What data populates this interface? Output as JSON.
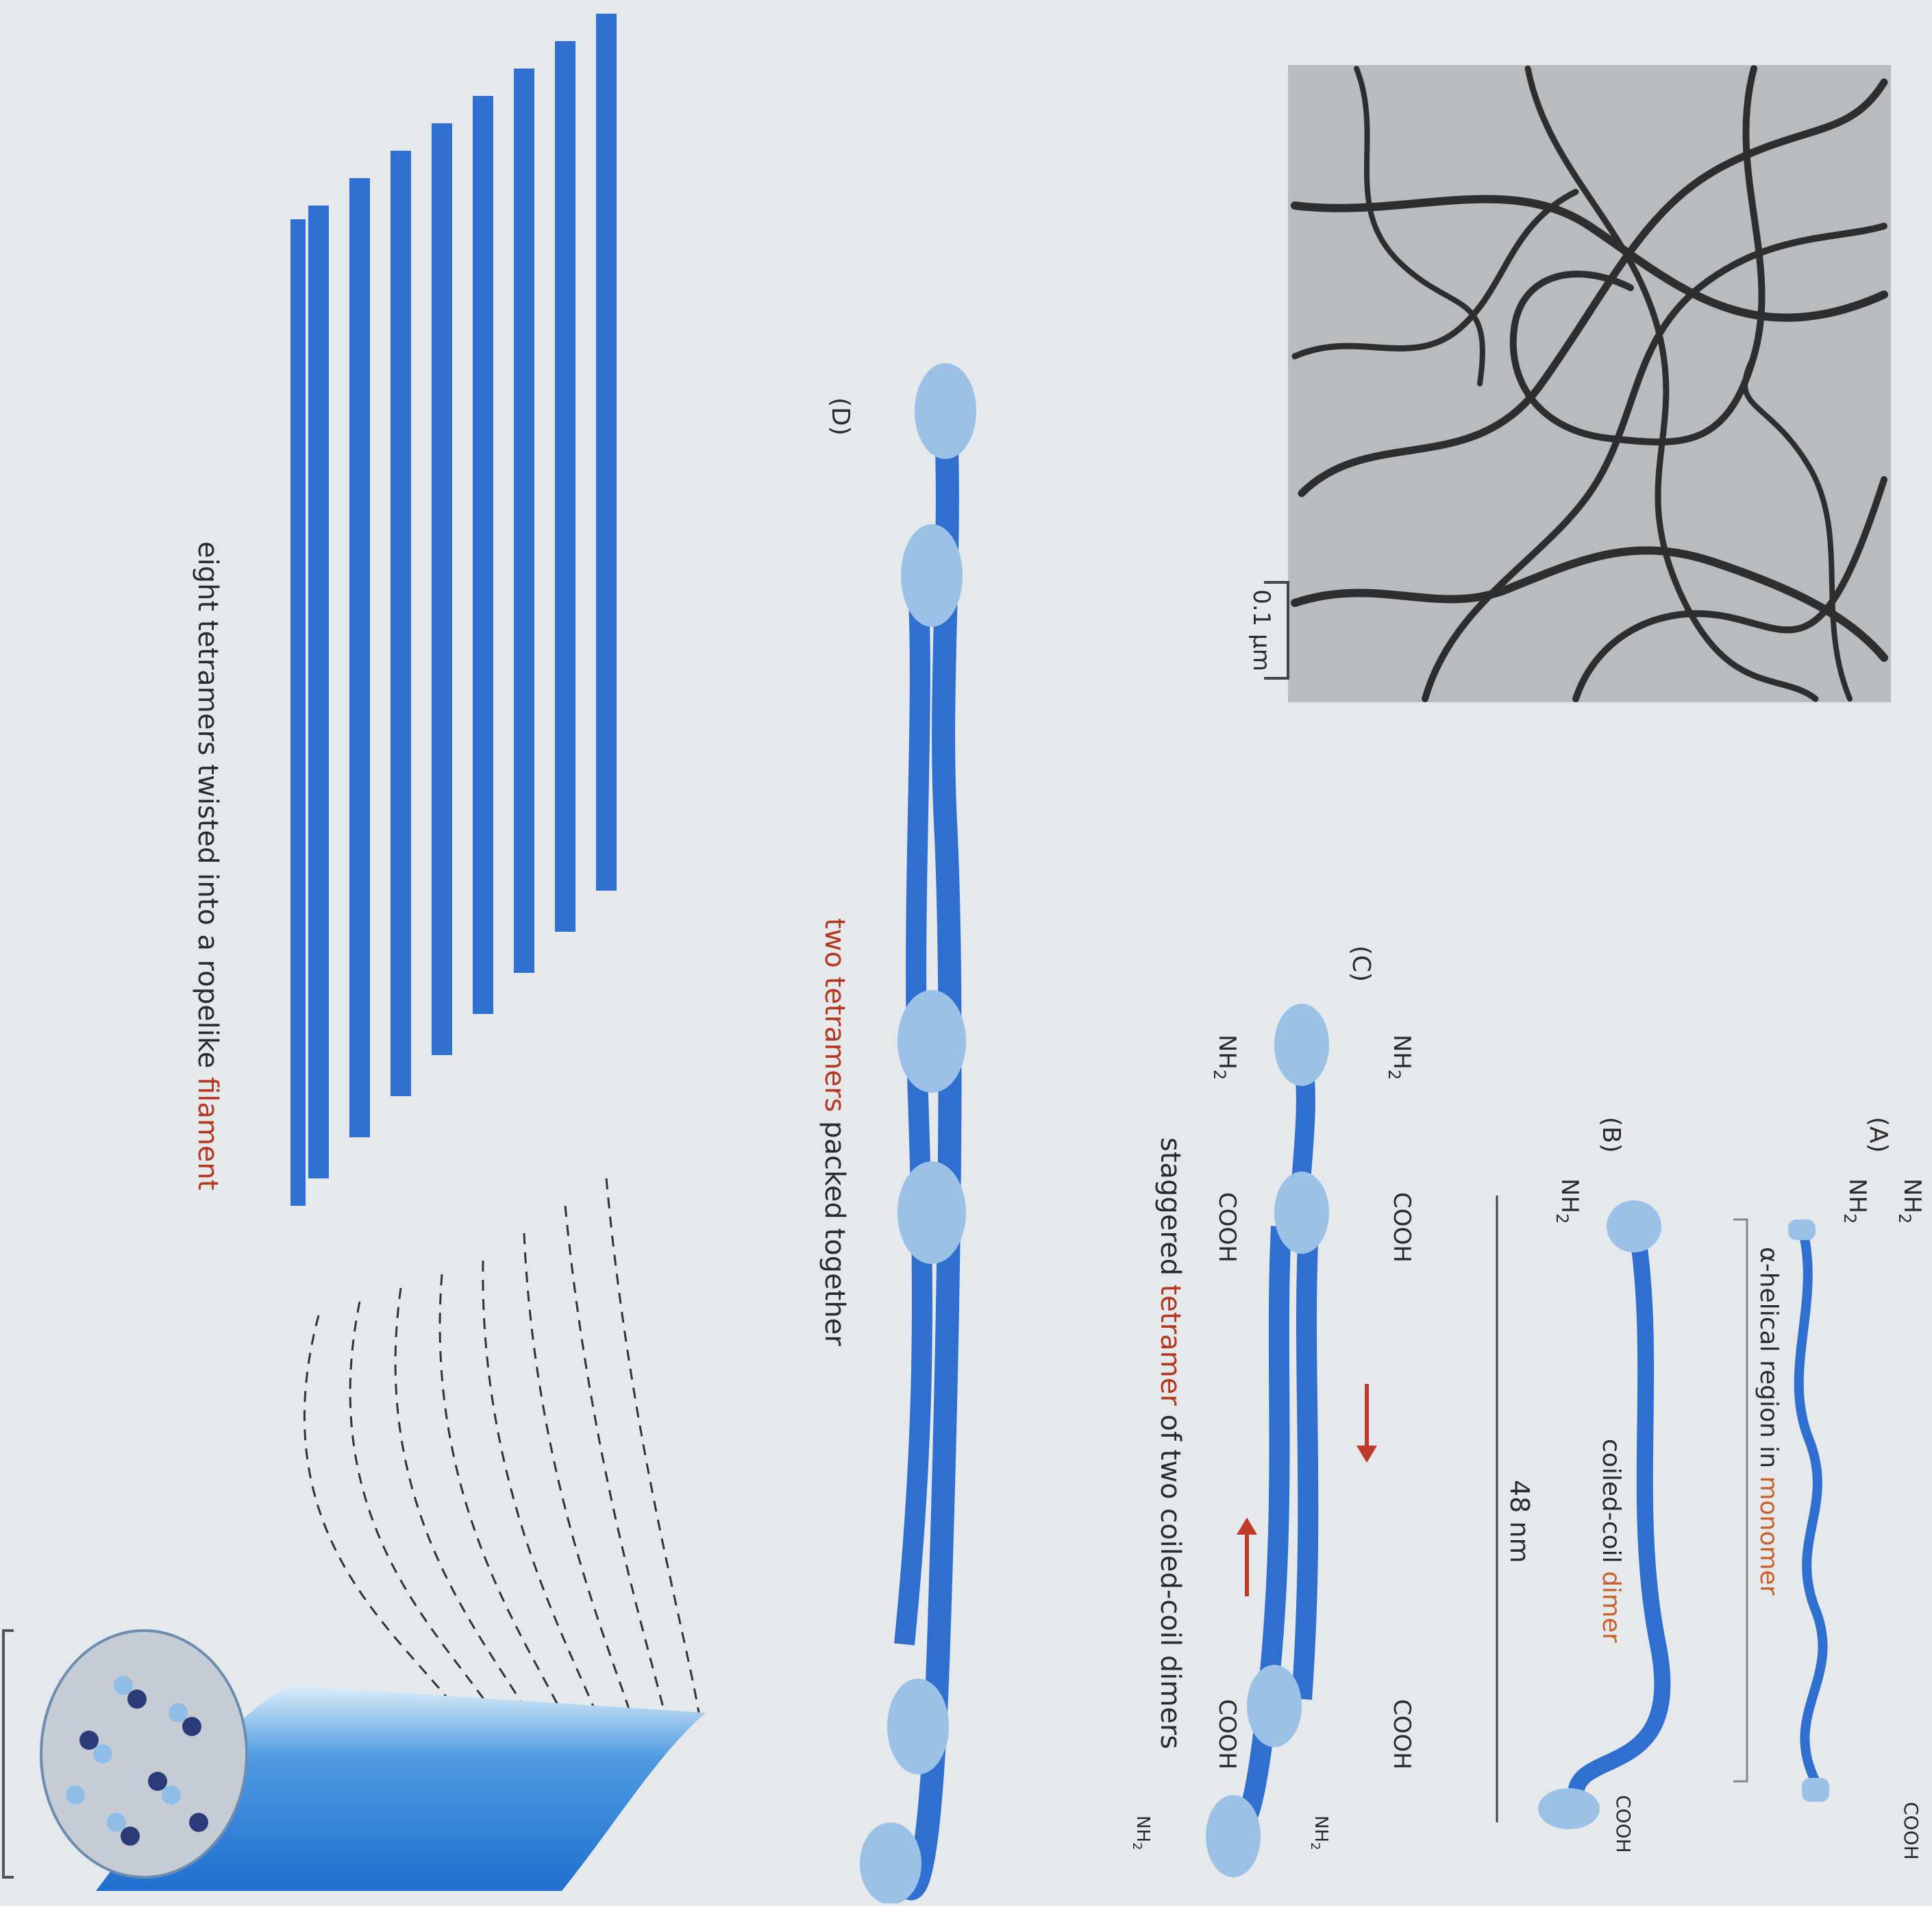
{
  "labels": {
    "A": "(A)",
    "B": "(B)",
    "C": "(C)",
    "D": "(D)",
    "nh2": "NH",
    "nh2_sub": "2",
    "cooh": "COOH",
    "length": "48 nm",
    "scale_bar": "0.1 µm"
  },
  "captions": {
    "monomer": {
      "pre": "α-helical region in ",
      "key": "monomer",
      "post": ""
    },
    "dimer": {
      "pre": "coiled-coil ",
      "key": "dimer",
      "post": ""
    },
    "tetramer": {
      "pre": "staggered ",
      "key": "tetramer",
      "post": " of two coiled-coil dimers"
    },
    "packed": {
      "pre": "two ",
      "key": "tetramers",
      "post": " packed together"
    },
    "filament": {
      "pre": "eight tetramers twisted into a ropelike ",
      "key": "filament",
      "post": ""
    }
  },
  "colors": {
    "page": "#e6e9ec",
    "rope_blue": "#2f6fcf",
    "rope_dark": "#1c4fa0",
    "head_light": "#9cc1e6",
    "keyword_red": "#b5371f",
    "keyword_orange": "#c9602a",
    "micrograph_bg": "#b9bdbf"
  }
}
